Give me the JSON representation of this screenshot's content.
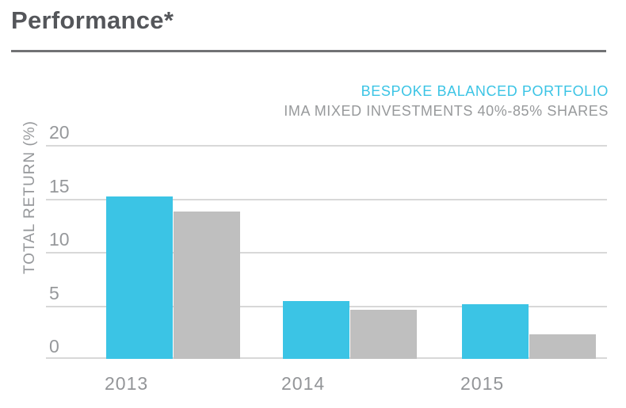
{
  "page": {
    "title": "Performance*"
  },
  "legend": {
    "items": [
      {
        "label": "BESPOKE BALANCED PORTFOLIO",
        "color": "#3bc4e5"
      },
      {
        "label": "IMA MIXED INVESTMENTS 40%-85% SHARES",
        "color": "#97999b"
      }
    ]
  },
  "chart_data": {
    "type": "bar",
    "title": "Performance*",
    "categories": [
      "2013",
      "2014",
      "2015"
    ],
    "series": [
      {
        "name": "BESPOKE BALANCED PORTFOLIO",
        "color": "#3bc4e5",
        "values": [
          15.2,
          5.4,
          5.1
        ]
      },
      {
        "name": "IMA MIXED INVESTMENTS 40%-85% SHARES",
        "color": "#bfbfbf",
        "values": [
          13.8,
          4.6,
          2.3
        ]
      }
    ],
    "xlabel": "",
    "ylabel": "TOTAL RETURN (%)",
    "ylim": [
      0,
      20
    ],
    "yticks": [
      0,
      5,
      10,
      15,
      20
    ],
    "grid": true,
    "gridline_color": "#d8d8d8",
    "legend_position": "top-right"
  }
}
